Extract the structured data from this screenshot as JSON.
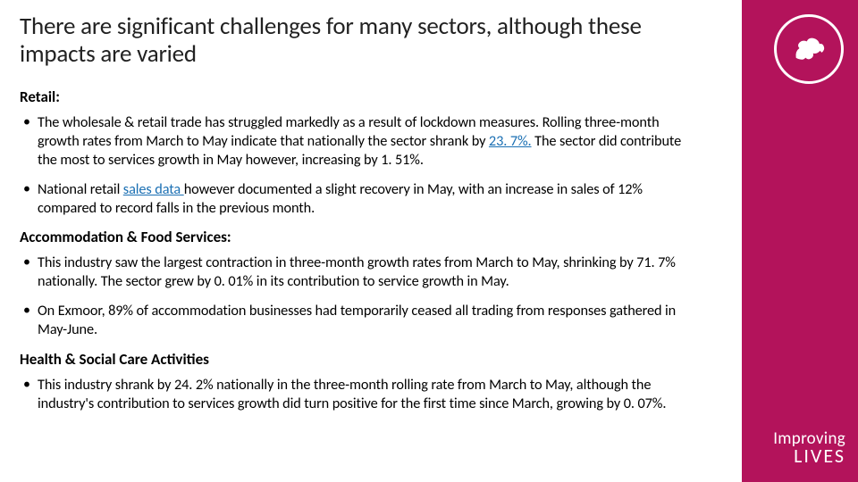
{
  "colors": {
    "accent": "#b3135b",
    "link": "#1a6fb3",
    "title": "#222222",
    "body": "#222222",
    "white": "#ffffff"
  },
  "title": "There are significant challenges for many sectors, although these impacts are varied",
  "sections": [
    {
      "heading": "Retail:",
      "bullets": [
        {
          "pre": "The wholesale & retail trade has struggled markedly as a result of lockdown measures. Rolling three-month growth rates from March to May indicate that nationally the sector shrank by ",
          "link": "23. 7%.",
          "post": " The sector did contribute the most to services growth in May however, increasing by 1. 51%."
        },
        {
          "pre": "National retail ",
          "link": "sales data ",
          "post": "however documented a slight recovery in May, with an increase in sales of 12% compared to record falls in the previous month."
        }
      ]
    },
    {
      "heading": "Accommodation & Food Services:",
      "bullets": [
        {
          "pre": "This industry saw the largest contraction in three-month growth rates from March to May, shrinking by 71. 7% nationally. The sector grew by 0. 01% in its contribution to service growth in May.",
          "link": "",
          "post": ""
        },
        {
          "pre": "On Exmoor, 89% of accommodation businesses had temporarily ceased all trading from responses gathered in May-June.",
          "link": "",
          "post": ""
        }
      ]
    },
    {
      "heading": "Health & Social Care Activities",
      "bullets": [
        {
          "pre": "This industry shrank by 24. 2% nationally in the three-month rolling rate from March to May, although the industry's contribution to services growth did turn positive for the first time since March, growing by 0. 07%.",
          "link": "",
          "post": ""
        }
      ]
    }
  ],
  "branding": {
    "line1": "Improving",
    "line2": "LIVES"
  }
}
